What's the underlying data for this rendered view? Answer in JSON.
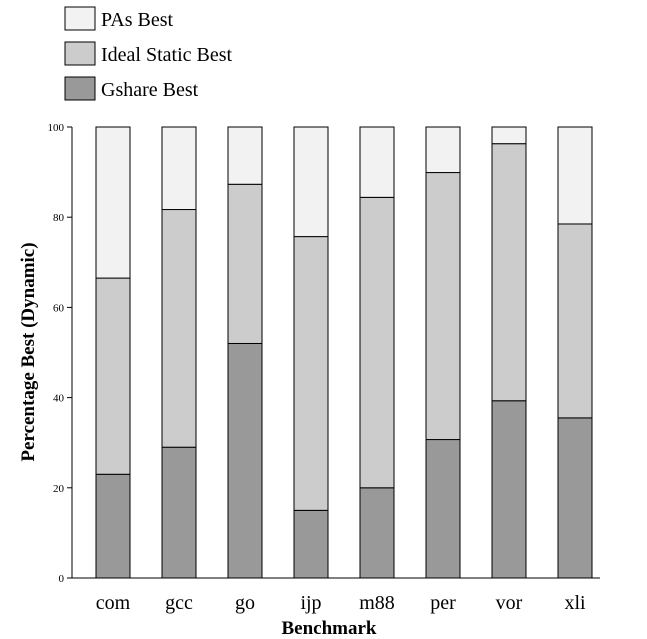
{
  "chart_data": {
    "type": "bar",
    "stacked": true,
    "xlabel": "Benchmark",
    "ylabel": "Percentage Best (Dynamic)",
    "ylim": [
      0,
      100
    ],
    "yticks": [
      0,
      20,
      40,
      60,
      80,
      100
    ],
    "grid": false,
    "legend_position": "top-left",
    "categories": [
      "com",
      "gcc",
      "go",
      "ijp",
      "m88",
      "per",
      "vor",
      "xli"
    ],
    "series": [
      {
        "name": "Gshare Best",
        "color": "#999999",
        "values": [
          23,
          29,
          52,
          15,
          20,
          30.7,
          39.3,
          35.5
        ]
      },
      {
        "name": "Ideal Static Best",
        "color": "#cccccc",
        "values": [
          43.5,
          52.7,
          35.3,
          60.7,
          64.4,
          59.2,
          57,
          43
        ]
      },
      {
        "name": "PAs Best",
        "color": "#f2f2f2",
        "values": [
          33.5,
          18.3,
          12.7,
          24.3,
          15.6,
          10.1,
          3.7,
          21.5
        ]
      }
    ],
    "legend_order": [
      "PAs Best",
      "Ideal Static Best",
      "Gshare Best"
    ]
  }
}
